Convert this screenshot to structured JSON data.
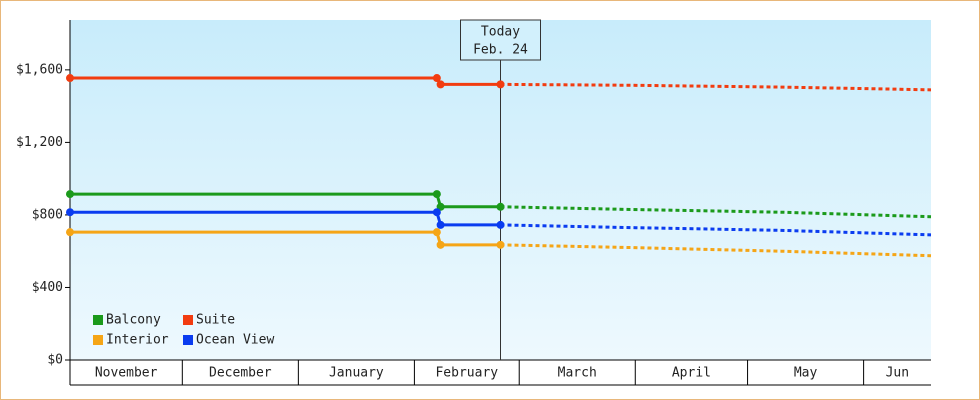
{
  "chart_data": {
    "type": "line",
    "x": [
      0,
      98,
      99,
      115
    ],
    "forecast_x": [
      115,
      150,
      190,
      230
    ],
    "xlim": [
      0,
      230
    ],
    "xticks": [
      {
        "value": 0,
        "label": "November"
      },
      {
        "value": 30,
        "label": "December"
      },
      {
        "value": 61,
        "label": "January"
      },
      {
        "value": 92,
        "label": "February"
      },
      {
        "value": 120,
        "label": "March"
      },
      {
        "value": 151,
        "label": "April"
      },
      {
        "value": 181,
        "label": "May"
      },
      {
        "value": 212,
        "label": "Jun"
      }
    ],
    "ylim": [
      0,
      1875
    ],
    "yticks": [
      {
        "value": 0,
        "label": "$0"
      },
      {
        "value": 400,
        "label": "$400"
      },
      {
        "value": 800,
        "label": "$800"
      },
      {
        "value": 1200,
        "label": "$1,200"
      },
      {
        "value": 1600,
        "label": "$1,600"
      }
    ],
    "today": {
      "x": 115,
      "label": [
        "Today",
        "Feb. 24"
      ]
    },
    "legend": "bottom-left",
    "series": [
      {
        "name": "Balcony",
        "color": "#1b9a1b",
        "values": [
          915,
          915,
          845,
          845
        ],
        "forecast": [
          845,
          830,
          815,
          790
        ]
      },
      {
        "name": "Suite",
        "color": "#f23c10",
        "values": [
          1555,
          1555,
          1520,
          1520
        ],
        "forecast": [
          1520,
          1515,
          1505,
          1490
        ]
      },
      {
        "name": "Interior",
        "color": "#f5a516",
        "values": [
          705,
          705,
          635,
          635
        ],
        "forecast": [
          635,
          620,
          600,
          575
        ]
      },
      {
        "name": "Ocean View",
        "color": "#0a3cf0",
        "values": [
          815,
          815,
          745,
          745
        ],
        "forecast": [
          745,
          730,
          715,
          690
        ]
      }
    ]
  }
}
